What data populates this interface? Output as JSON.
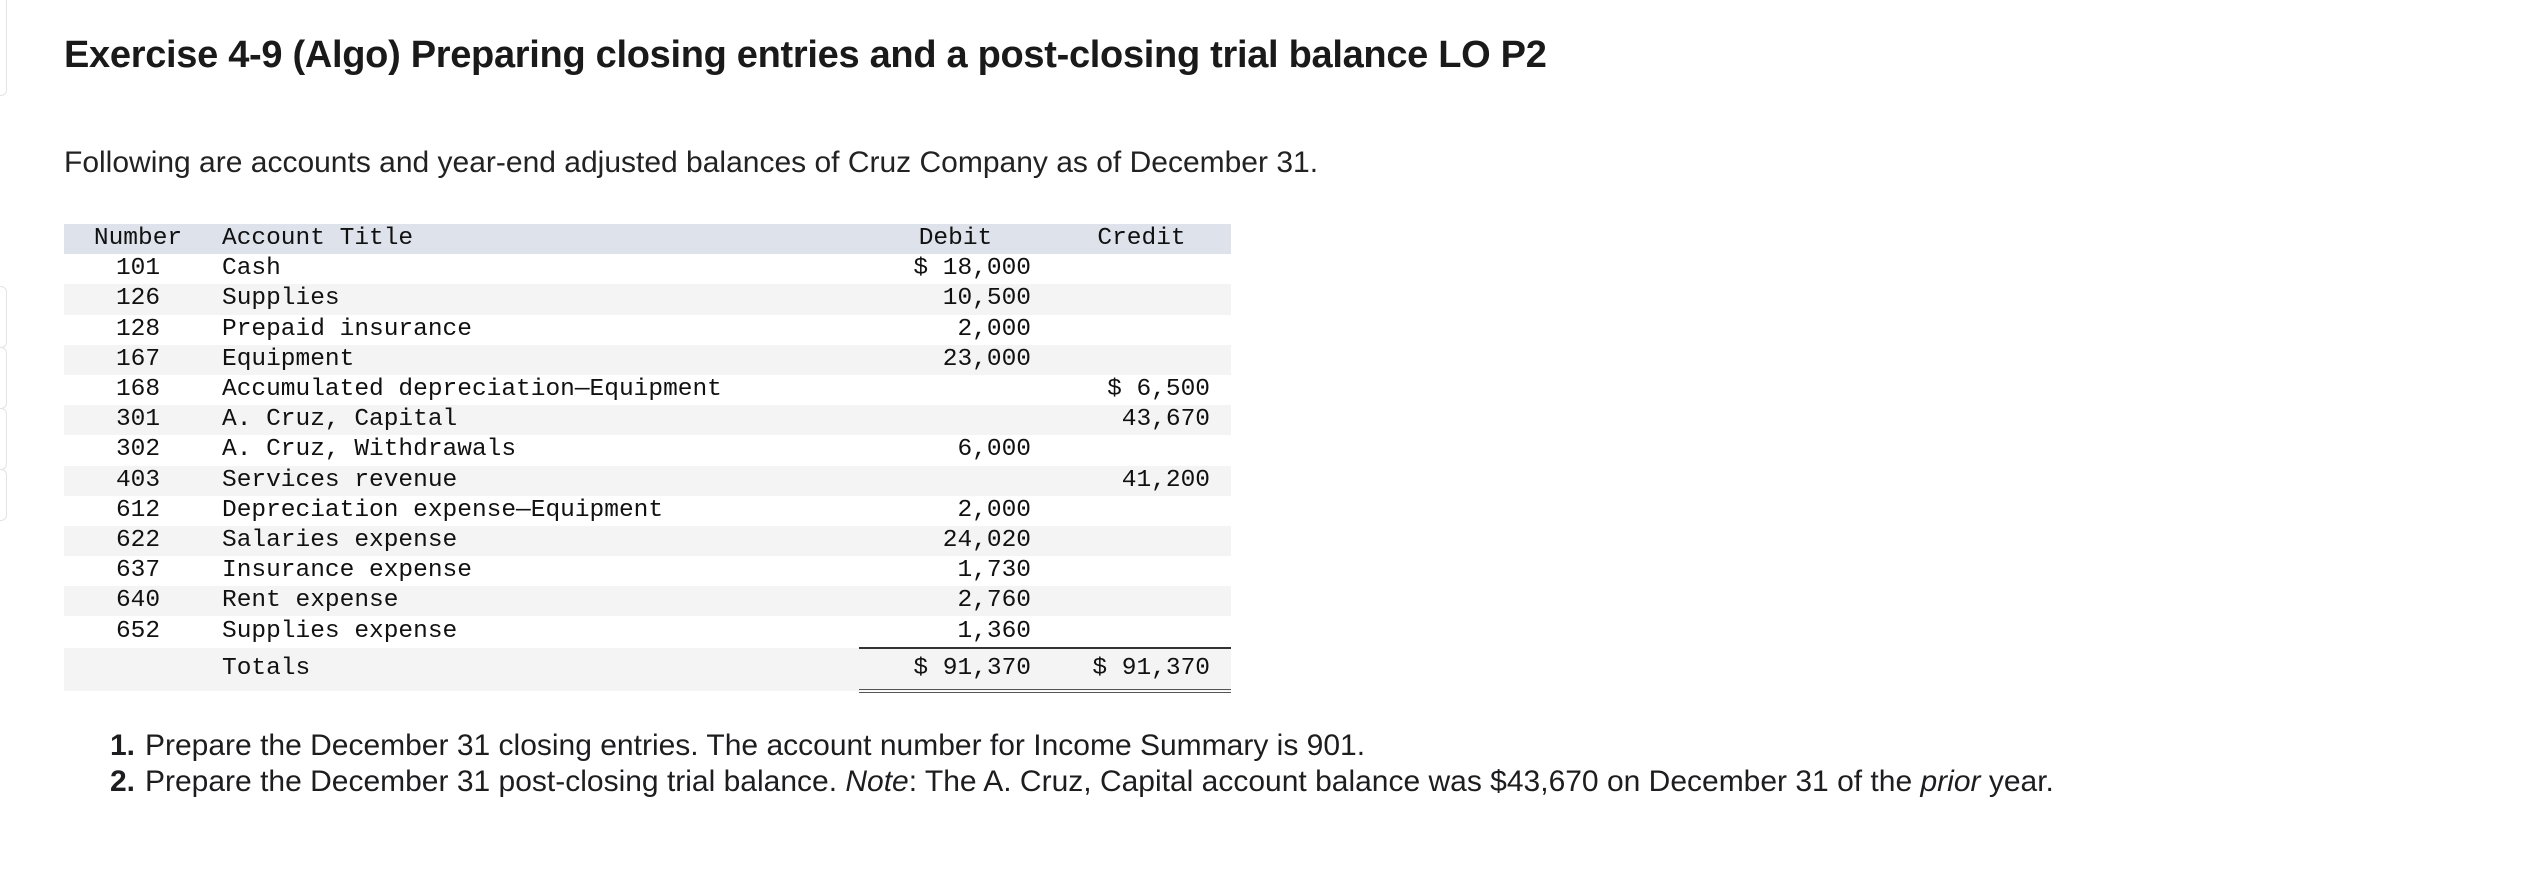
{
  "page": {
    "title": "Exercise 4-9 (Algo) Preparing closing entries and a post-closing trial balance LO P2",
    "intro": "Following are accounts and year-end adjusted balances of Cruz Company as of December 31."
  },
  "table": {
    "headers": {
      "number": "Number",
      "title": "Account Title",
      "debit": "Debit",
      "credit": "Credit"
    },
    "rows": [
      {
        "number": "101",
        "title": "Cash",
        "debit": "$ 18,000",
        "credit": ""
      },
      {
        "number": "126",
        "title": "Supplies",
        "debit": "10,500",
        "credit": ""
      },
      {
        "number": "128",
        "title": "Prepaid insurance",
        "debit": "2,000",
        "credit": ""
      },
      {
        "number": "167",
        "title": "Equipment",
        "debit": "23,000",
        "credit": ""
      },
      {
        "number": "168",
        "title": "Accumulated depreciation—Equipment",
        "debit": "",
        "credit": "$ 6,500"
      },
      {
        "number": "301",
        "title": "A. Cruz, Capital",
        "debit": "",
        "credit": "43,670"
      },
      {
        "number": "302",
        "title": "A. Cruz, Withdrawals",
        "debit": "6,000",
        "credit": ""
      },
      {
        "number": "403",
        "title": "Services revenue",
        "debit": "",
        "credit": "41,200"
      },
      {
        "number": "612",
        "title": "Depreciation expense—Equipment",
        "debit": "2,000",
        "credit": ""
      },
      {
        "number": "622",
        "title": "Salaries expense",
        "debit": "24,020",
        "credit": ""
      },
      {
        "number": "637",
        "title": "Insurance expense",
        "debit": "1,730",
        "credit": ""
      },
      {
        "number": "640",
        "title": "Rent expense",
        "debit": "2,760",
        "credit": ""
      },
      {
        "number": "652",
        "title": "Supplies expense",
        "debit": "1,360",
        "credit": ""
      }
    ],
    "totals": {
      "label": "Totals",
      "debit": "$ 91,370",
      "credit": "$ 91,370"
    }
  },
  "tasks": [
    {
      "marker": "1.",
      "text": "Prepare the December 31 closing entries. The account number for Income Summary is 901."
    },
    {
      "marker": "2.",
      "text_before": "Prepare the December 31 post-closing trial balance. ",
      "note_label": "Note",
      "text_mid": ": The A. Cruz, Capital account balance was $43,670 on December 31 of the ",
      "prior_word": "prior",
      "text_after": " year."
    }
  ]
}
